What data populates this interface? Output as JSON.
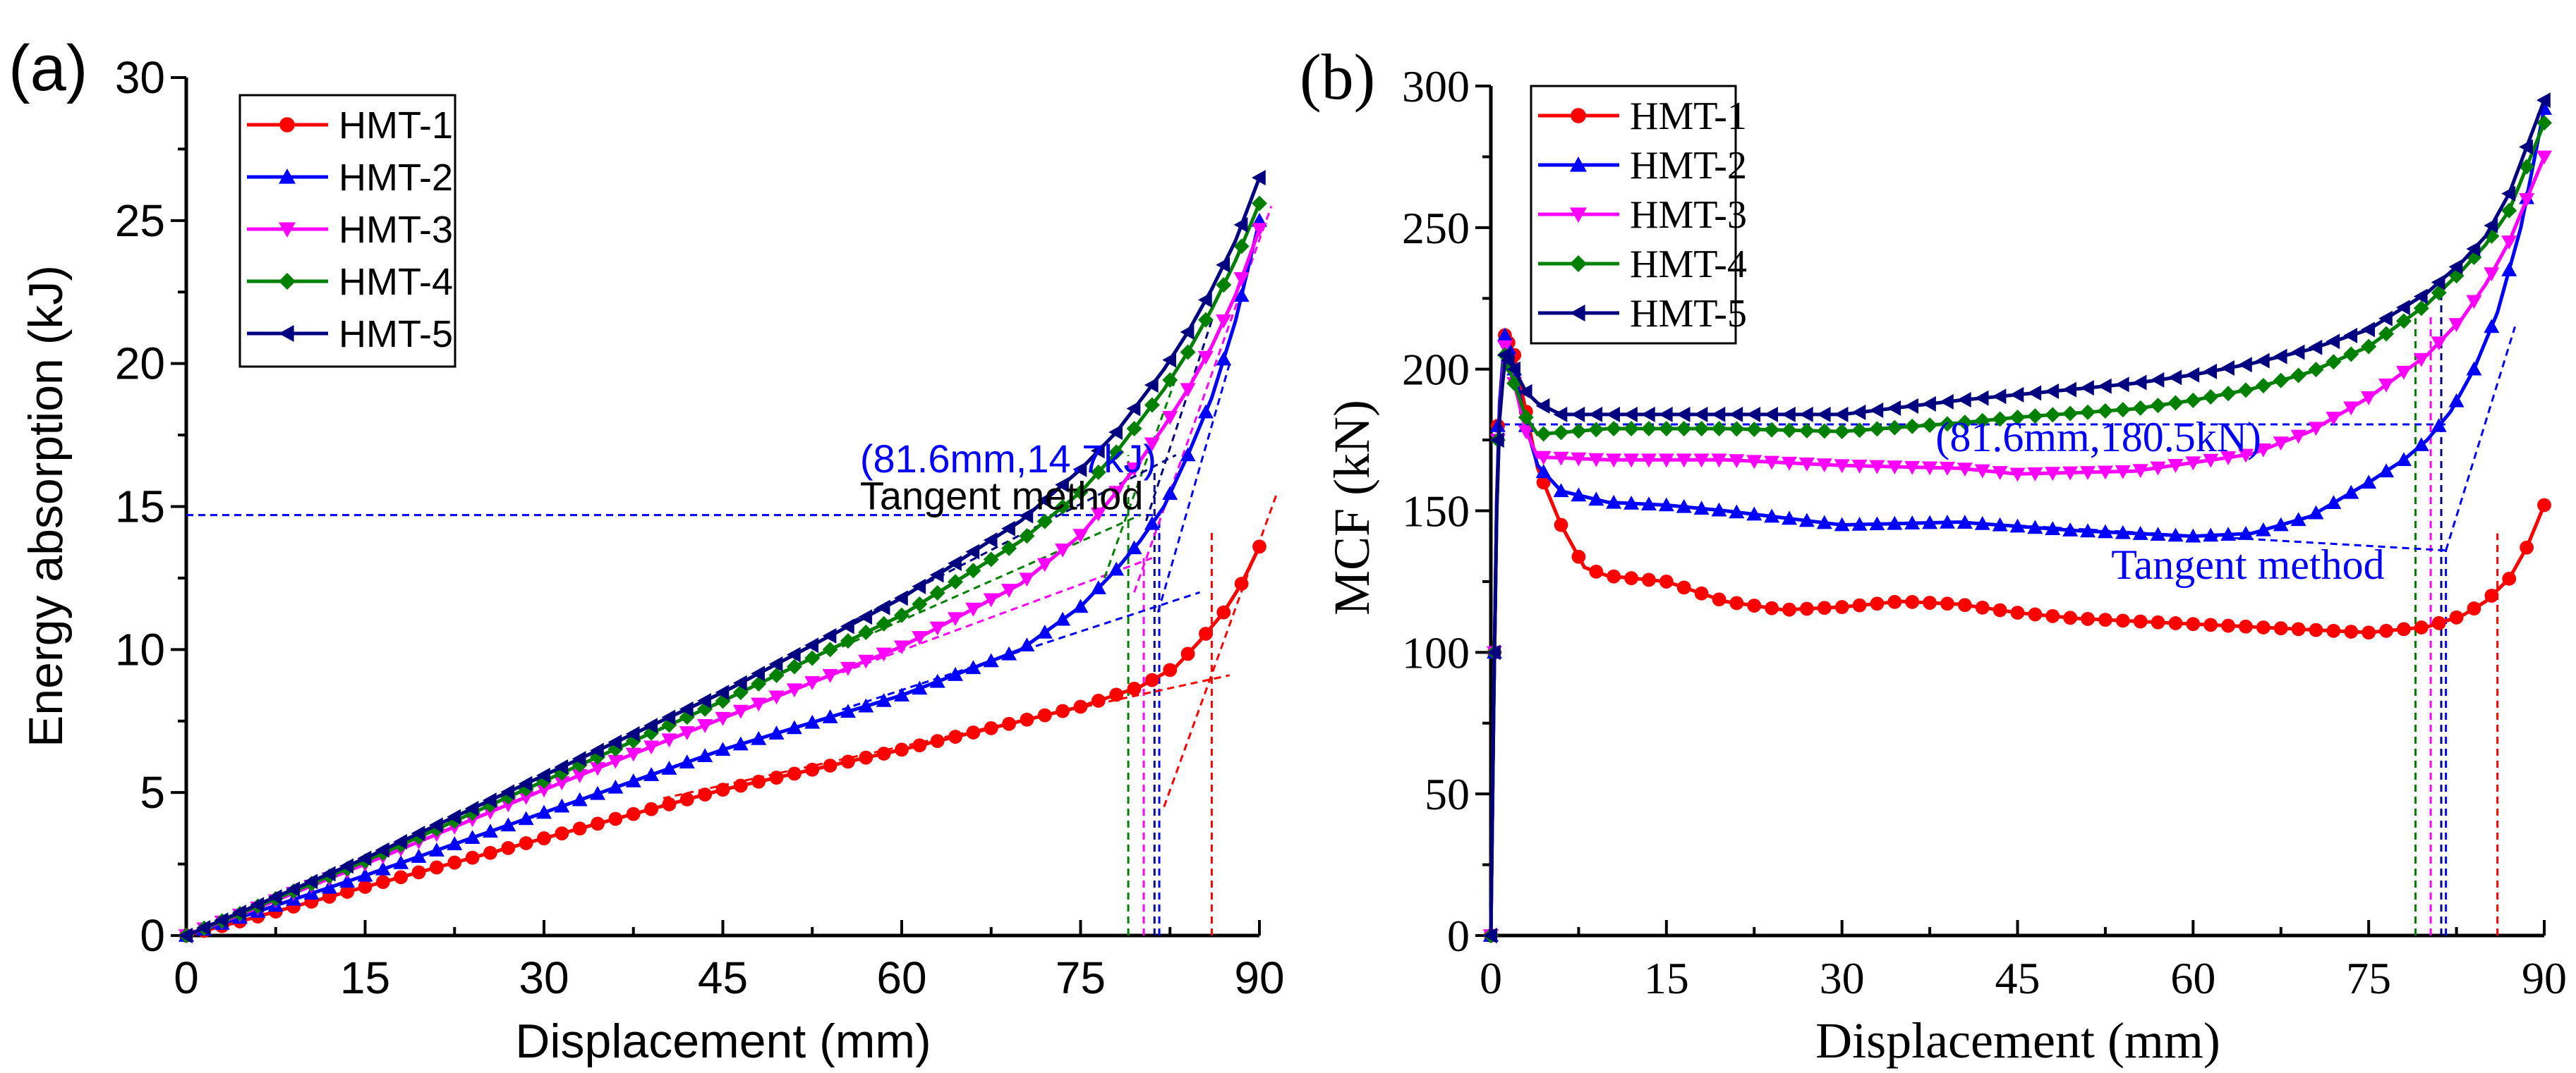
{
  "chart_data": [
    {
      "type": "line",
      "panel_label": "(a)",
      "title": "",
      "xlabel": "Displacement (mm)",
      "ylabel": "Energy absorption (kJ)",
      "xlim": [
        0,
        90
      ],
      "ylim": [
        0,
        30
      ],
      "xticks": [
        0,
        15,
        30,
        45,
        60,
        75,
        90
      ],
      "yticks": [
        0,
        5,
        10,
        15,
        20,
        25,
        30
      ],
      "grid": false,
      "legend_position": "top-left",
      "series": [
        {
          "name": "HMT-1",
          "color": "#ff0000",
          "marker": "circle",
          "x": [
            0,
            5,
            15,
            30,
            45,
            60,
            70,
            75,
            80,
            83,
            85,
            87,
            88.5,
            90
          ],
          "y": [
            0,
            0.55,
            1.7,
            3.4,
            5.1,
            6.5,
            7.5,
            8.0,
            8.7,
            9.4,
            10.3,
            11.3,
            12.3,
            13.6
          ]
        },
        {
          "name": "HMT-2",
          "color": "#0000ff",
          "marker": "triangle-up",
          "x": [
            0,
            5,
            15,
            30,
            45,
            60,
            70,
            75,
            78,
            80,
            82,
            84,
            86,
            88,
            90
          ],
          "y": [
            0,
            0.7,
            2.1,
            4.3,
            6.5,
            8.4,
            10.0,
            11.5,
            12.8,
            13.8,
            15.0,
            16.8,
            18.8,
            21.5,
            25.0
          ]
        },
        {
          "name": "HMT-3",
          "color": "#ff00ff",
          "marker": "triangle-down",
          "x": [
            0,
            5,
            15,
            30,
            45,
            60,
            70,
            75,
            78,
            80,
            82,
            84,
            86,
            88,
            90
          ],
          "y": [
            0,
            0.8,
            2.5,
            5.1,
            7.6,
            10.1,
            12.3,
            14.0,
            15.5,
            16.6,
            17.8,
            19.1,
            20.6,
            22.4,
            24.7
          ]
        },
        {
          "name": "HMT-4",
          "color": "#008000",
          "marker": "diamond",
          "x": [
            0,
            5,
            15,
            30,
            45,
            60,
            70,
            75,
            78,
            80,
            82,
            84,
            86,
            88,
            90
          ],
          "y": [
            0,
            0.85,
            2.6,
            5.4,
            8.2,
            11.2,
            13.8,
            15.5,
            16.9,
            18.0,
            19.1,
            20.4,
            21.9,
            23.6,
            25.6
          ]
        },
        {
          "name": "HMT-5",
          "color": "#000080",
          "marker": "triangle-left",
          "x": [
            0,
            5,
            15,
            30,
            45,
            60,
            70,
            75,
            78,
            80,
            82,
            84,
            86,
            88,
            90
          ],
          "y": [
            0,
            0.9,
            2.7,
            5.6,
            8.5,
            11.8,
            14.5,
            16.3,
            17.6,
            18.7,
            19.8,
            21.1,
            22.6,
            24.3,
            26.5
          ]
        }
      ],
      "reference_lines": [
        {
          "color": "#0000ff",
          "x": [
            0,
            81.6
          ],
          "y": [
            14.7,
            14.7
          ]
        },
        {
          "color": "#008000",
          "x": [
            79,
            79
          ],
          "y": [
            0,
            16.8
          ]
        },
        {
          "color": "#ff00ff",
          "x": [
            80.3,
            80.3
          ],
          "y": [
            0,
            13.2
          ]
        },
        {
          "color": "#000080",
          "x": [
            81.2,
            81.2
          ],
          "y": [
            0,
            16.2
          ]
        },
        {
          "color": "#0000ff",
          "x": [
            81.6,
            81.6
          ],
          "y": [
            0,
            14.7
          ]
        },
        {
          "color": "#ff0000",
          "x": [
            86,
            86
          ],
          "y": [
            0,
            14.2
          ]
        },
        {
          "color": "#ff0000",
          "x": [
            40,
            87.5
          ],
          "y": [
            4.8,
            9.1
          ]
        },
        {
          "color": "#ff0000",
          "x": [
            82,
            91.5
          ],
          "y": [
            4.5,
            15.5
          ]
        },
        {
          "color": "#0000ff",
          "x": [
            55,
            85
          ],
          "y": [
            7.9,
            12.0
          ]
        },
        {
          "color": "#0000ff",
          "x": [
            81.5,
            87.5
          ],
          "y": [
            11.3,
            20.0
          ]
        },
        {
          "color": "#ff00ff",
          "x": [
            55,
            81
          ],
          "y": [
            9.2,
            13.2
          ]
        },
        {
          "color": "#ff00ff",
          "x": [
            79.5,
            91
          ],
          "y": [
            12.0,
            25.5
          ]
        },
        {
          "color": "#008000",
          "x": [
            55,
            80
          ],
          "y": [
            10.1,
            14.7
          ]
        },
        {
          "color": "#008000",
          "x": [
            77,
            83
          ],
          "y": [
            12.5,
            19.5
          ]
        },
        {
          "color": "#000080",
          "x": [
            55,
            83
          ],
          "y": [
            10.8,
            16.8
          ]
        },
        {
          "color": "#000080",
          "x": [
            80.5,
            86
          ],
          "y": [
            14.5,
            21.5
          ]
        }
      ],
      "annotations": [
        {
          "text": "(81.6mm,14.7kJ)",
          "color": "#0000ff",
          "x": 56.5,
          "y": 16.2
        },
        {
          "text": "Tangent method",
          "color": "#000000",
          "x": 56.5,
          "y": 14.9
        }
      ]
    },
    {
      "type": "line",
      "panel_label": "(b)",
      "title": "",
      "xlabel": "Displacement (mm)",
      "ylabel": "MCF (kN)",
      "xlim": [
        0,
        90
      ],
      "ylim": [
        0,
        300
      ],
      "xticks": [
        0,
        15,
        30,
        45,
        60,
        75,
        90
      ],
      "yticks": [
        0,
        50,
        100,
        150,
        200,
        250,
        300
      ],
      "grid": false,
      "legend_position": "top-left",
      "series": [
        {
          "name": "HMT-1",
          "color": "#ff0000",
          "marker": "circle",
          "x": [
            0,
            0.3,
            0.6,
            1.2,
            2,
            3,
            4,
            6,
            8,
            10,
            15,
            20,
            25,
            30,
            35,
            40,
            45,
            50,
            60,
            70,
            75,
            80,
            83,
            85,
            87,
            88.5,
            90
          ],
          "y": [
            0,
            100,
            180,
            212,
            205,
            185,
            165,
            145,
            130,
            127,
            125,
            118,
            115,
            116,
            118,
            117,
            114,
            112,
            110,
            108,
            107,
            109,
            113,
            118,
            126,
            137,
            152
          ]
        },
        {
          "name": "HMT-2",
          "color": "#0000ff",
          "marker": "triangle-up",
          "x": [
            0,
            0.3,
            0.6,
            1.2,
            2,
            3,
            4,
            6,
            10,
            15,
            20,
            30,
            40,
            50,
            60,
            65,
            70,
            75,
            78,
            80,
            82,
            84,
            86,
            88,
            90
          ],
          "y": [
            0,
            100,
            180,
            212,
            200,
            180,
            166,
            157,
            153,
            152,
            150,
            145,
            146,
            143,
            141,
            142,
            148,
            160,
            168,
            175,
            185,
            200,
            220,
            250,
            292
          ]
        },
        {
          "name": "HMT-3",
          "color": "#ff00ff",
          "marker": "triangle-down",
          "x": [
            0,
            0.3,
            0.6,
            1.2,
            2,
            3,
            4,
            10,
            20,
            30,
            40,
            45,
            55,
            60,
            65,
            70,
            75,
            80,
            83,
            85,
            87,
            90
          ],
          "y": [
            0,
            100,
            175,
            208,
            195,
            178,
            169,
            168,
            168,
            166,
            165,
            163,
            164,
            167,
            170,
            178,
            190,
            205,
            218,
            230,
            245,
            275
          ]
        },
        {
          "name": "HMT-4",
          "color": "#008000",
          "marker": "diamond",
          "x": [
            0,
            0.3,
            0.6,
            1.2,
            2,
            3,
            4,
            10,
            20,
            30,
            40,
            45,
            55,
            60,
            65,
            70,
            75,
            80,
            83,
            85,
            87,
            90
          ],
          "y": [
            0,
            100,
            175,
            205,
            195,
            183,
            177,
            179,
            179,
            178,
            181,
            183,
            186,
            189,
            193,
            199,
            208,
            223,
            235,
            244,
            256,
            287
          ]
        },
        {
          "name": "HMT-5",
          "color": "#000080",
          "marker": "triangle-left",
          "x": [
            0,
            0.3,
            0.6,
            1.2,
            2,
            3,
            4,
            6,
            10,
            20,
            30,
            40,
            45,
            55,
            60,
            65,
            70,
            75,
            80,
            83,
            85,
            87,
            90
          ],
          "y": [
            0,
            100,
            175,
            205,
            200,
            192,
            188,
            184,
            184,
            184,
            184,
            189,
            191,
            195,
            198,
            202,
            207,
            214,
            227,
            238,
            247,
            262,
            295
          ]
        }
      ],
      "reference_lines": [
        {
          "color": "#0000ff",
          "x": [
            0,
            81.6
          ],
          "y": [
            180.5,
            180.5
          ]
        },
        {
          "color": "#008000",
          "x": [
            79,
            79
          ],
          "y": [
            0,
            218
          ]
        },
        {
          "color": "#ff00ff",
          "x": [
            80.3,
            80.3
          ],
          "y": [
            0,
            220
          ]
        },
        {
          "color": "#000080",
          "x": [
            81.2,
            81.2
          ],
          "y": [
            0,
            228
          ]
        },
        {
          "color": "#0000ff",
          "x": [
            81.6,
            81.6
          ],
          "y": [
            0,
            136
          ]
        },
        {
          "color": "#ff0000",
          "x": [
            86,
            86
          ],
          "y": [
            0,
            142
          ]
        },
        {
          "color": "#0000ff",
          "x": [
            40,
            81.6
          ],
          "y": [
            146,
            136
          ]
        },
        {
          "color": "#0000ff",
          "x": [
            81.6,
            87.5
          ],
          "y": [
            136,
            215
          ]
        }
      ],
      "annotations": [
        {
          "text": "(81.6mm,180.5kN)",
          "color": "#0000ff",
          "x": 38,
          "y": 171
        },
        {
          "text": "Tangent method",
          "color": "#0000ff",
          "x": 53,
          "y": 126
        }
      ]
    }
  ]
}
